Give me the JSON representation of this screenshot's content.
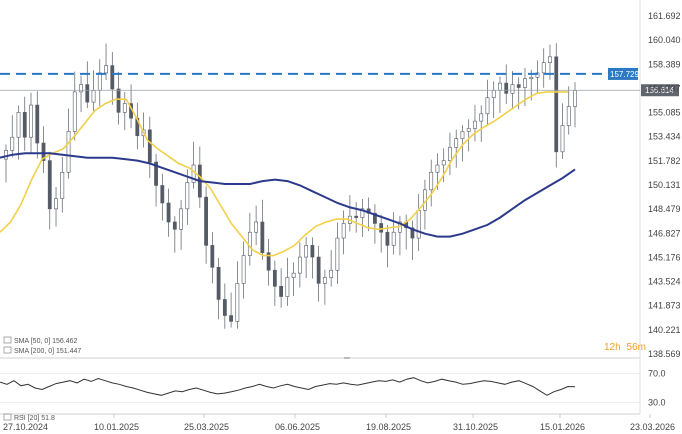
{
  "chart_data": [
    {
      "type": "line",
      "subtype": "candlestick",
      "y_axis_labels": [
        "161.692",
        "160.040",
        "158.389",
        "156.737",
        "155.085",
        "153.434",
        "151.782",
        "150.131",
        "148.479",
        "146.827",
        "145.176",
        "143.524",
        "141.873",
        "140.221",
        "138.569"
      ],
      "ylim": [
        138.569,
        161.692
      ],
      "x_labels": [
        "27.10.2024",
        "10.01.2025",
        "25.03.2025",
        "06.06.2025",
        "19.08.2025",
        "31.10.2025",
        "15.01.2026",
        "23.03.2026"
      ],
      "price_line": {
        "label": "156.614",
        "value": 156.614
      },
      "resistance_line": {
        "label": "157.729",
        "value": 157.729,
        "color": "#2b78c5"
      },
      "series": [
        {
          "name": "SMA [50, 0] 156.462",
          "color": "#f2d04a",
          "values": [
            146.9,
            147.6,
            148.8,
            150.5,
            151.9,
            152.3,
            152.6,
            153.4,
            154.3,
            155.2,
            155.7,
            156.0,
            156.0,
            154.7,
            153.2,
            152.6,
            152.1,
            151.6,
            151.3,
            150.7,
            149.9,
            148.7,
            147.5,
            146.6,
            145.7,
            145.3,
            145.3,
            145.6,
            146.0,
            146.7,
            147.3,
            147.6,
            147.8,
            147.8,
            147.5,
            147.2,
            147.1,
            147.2,
            147.3,
            147.8,
            148.6,
            149.5,
            150.6,
            151.9,
            152.9,
            153.6,
            154.1,
            154.5,
            155.0,
            155.5,
            156.0,
            156.4,
            156.5,
            156.5,
            156.5
          ]
        },
        {
          "name": "SMA [200, 0] 151.447",
          "color": "#2c3a8c",
          "values": [
            152.0,
            152.2,
            152.3,
            152.3,
            152.3,
            152.2,
            152.1,
            152.0,
            152.0,
            152.0,
            151.9,
            151.8,
            151.6,
            151.3,
            151.0,
            150.7,
            150.4,
            150.3,
            150.2,
            150.2,
            150.2,
            150.4,
            150.5,
            150.4,
            150.1,
            149.7,
            149.3,
            148.9,
            148.6,
            148.4,
            148.1,
            147.8,
            147.5,
            147.1,
            146.8,
            146.6,
            146.6,
            146.8,
            147.1,
            147.4,
            147.9,
            148.5,
            149.1,
            149.6,
            150.1,
            150.6,
            151.2
          ]
        }
      ],
      "candles_close": [
        152.5,
        153.4,
        155.1,
        153.4,
        155.6,
        153.0,
        151.8,
        148.5,
        149.2,
        151.0,
        153.8,
        156.5,
        157.0,
        155.8,
        156.6,
        157.8,
        158.3,
        156.7,
        155.1,
        155.7,
        154.7,
        153.5,
        153.9,
        151.7,
        150.1,
        148.9,
        147.6,
        147.1,
        148.5,
        150.3,
        151.5,
        149.3,
        146.0,
        144.5,
        142.3,
        141.2,
        140.8,
        143.4,
        145.3,
        146.9,
        147.6,
        145.5,
        144.3,
        143.2,
        142.5,
        143.8,
        144.1,
        145.2,
        146.0,
        145.2,
        143.4,
        143.8,
        144.3,
        146.5,
        147.5,
        148.0,
        147.9,
        148.5,
        148.2,
        147.5,
        146.9,
        146.0,
        146.9,
        147.6,
        147.2,
        146.5,
        148.4,
        149.8,
        151.0,
        151.5,
        151.8,
        152.7,
        153.3,
        153.8,
        154.0,
        154.5,
        155.0,
        156.1,
        156.6,
        157.1,
        156.4,
        157.0,
        156.8,
        157.4,
        157.5,
        157.8,
        158.5,
        158.9,
        152.4,
        154.2,
        155.5,
        156.6
      ],
      "annotations": [
        "12h 56m"
      ]
    },
    {
      "type": "line",
      "y_axis_labels": [
        "70.0",
        "30.0"
      ],
      "ylim": [
        30,
        70
      ],
      "series": [
        {
          "name": "RSI [20] 51.8",
          "color": "#333333",
          "values": [
            58,
            55,
            60,
            53,
            55,
            50,
            48,
            52,
            56,
            58,
            60,
            57,
            62,
            59,
            63,
            60,
            57,
            55,
            52,
            50,
            47,
            44,
            42,
            40,
            43,
            46,
            45,
            48,
            50,
            47,
            44,
            42,
            43,
            45,
            47,
            50,
            52,
            55,
            52,
            50,
            53,
            55,
            52,
            50,
            48,
            52,
            54,
            56,
            55,
            57,
            55,
            54,
            56,
            58,
            60,
            59,
            61,
            58,
            62,
            64,
            60,
            57,
            59,
            62,
            60,
            58,
            55,
            56,
            58,
            60,
            59,
            57,
            55,
            58,
            60,
            56,
            52,
            46,
            40,
            45,
            48,
            52,
            51.8
          ]
        }
      ]
    }
  ],
  "timer": {
    "hours": "12h",
    "minutes": "56m"
  },
  "legend": {
    "sma50": "SMA [50, 0] 156.462",
    "sma200": "SMA [200, 0] 151.447",
    "rsi": "RSI [20] 51.8"
  }
}
